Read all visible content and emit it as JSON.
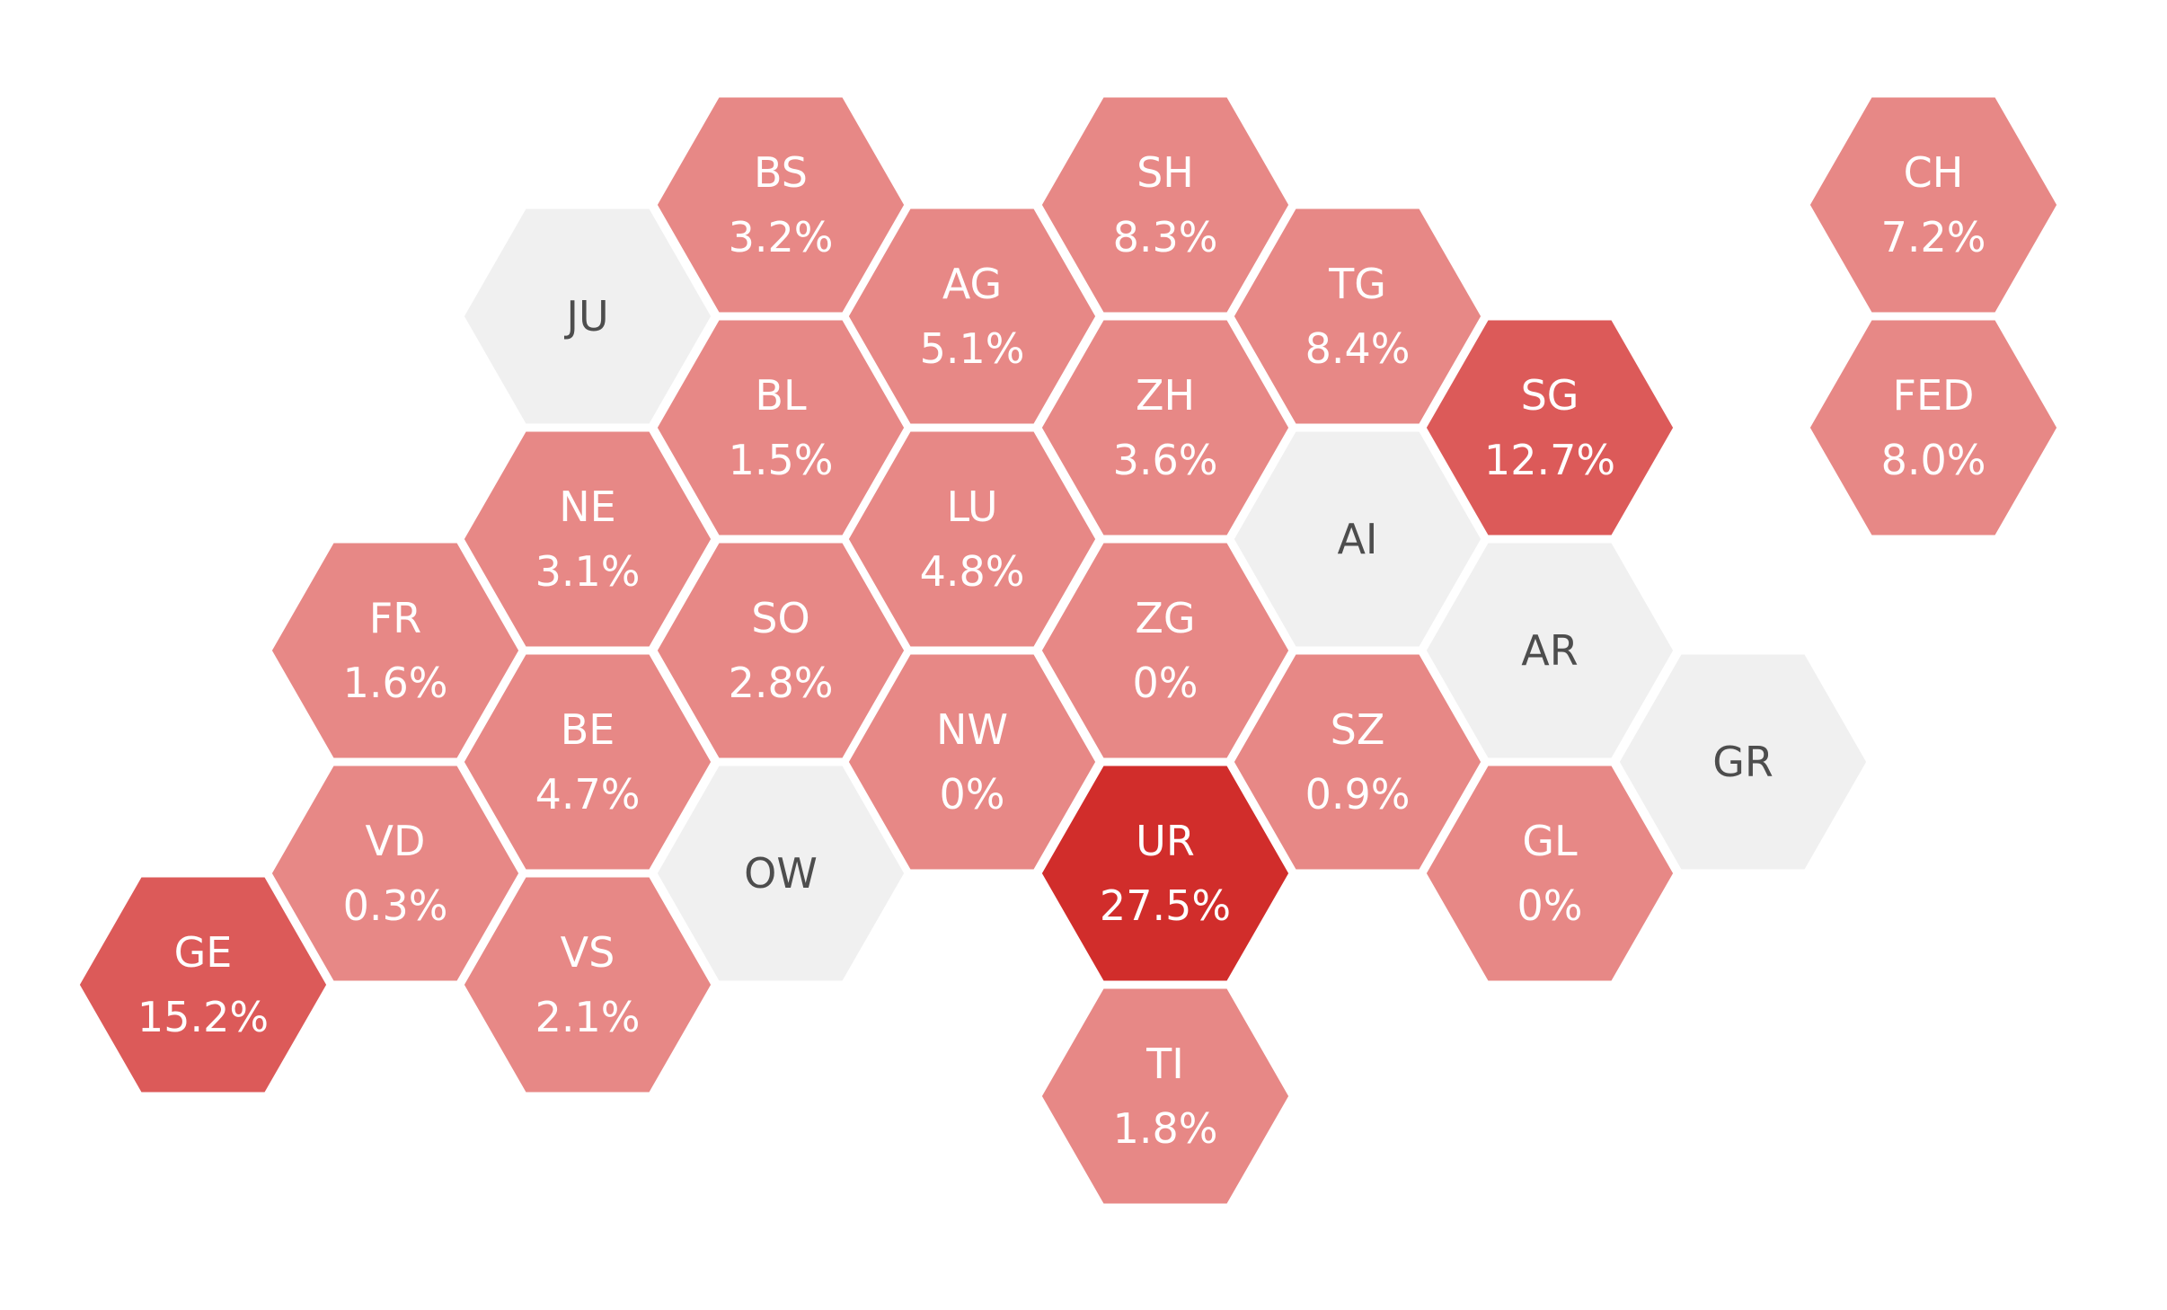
{
  "chart_data": {
    "type": "hexbin-map",
    "no_data_fill": "#f0f0f0",
    "colors": {
      "low": "#e78886",
      "mid": "#dc5a59",
      "high": "#d12d2b",
      "label_on_data": "#ffffff",
      "label_no_data": "#4d4d4d"
    },
    "regions": [
      {
        "code": "BS",
        "label": "3.2%",
        "value": 3.2,
        "level": "low"
      },
      {
        "code": "SH",
        "label": "8.3%",
        "value": 8.3,
        "level": "low"
      },
      {
        "code": "CH",
        "label": "7.2%",
        "value": 7.2,
        "level": "low"
      },
      {
        "code": "JU",
        "label": "",
        "value": null,
        "level": "none"
      },
      {
        "code": "AG",
        "label": "5.1%",
        "value": 5.1,
        "level": "low"
      },
      {
        "code": "TG",
        "label": "8.4%",
        "value": 8.4,
        "level": "low"
      },
      {
        "code": "BL",
        "label": "1.5%",
        "value": 1.5,
        "level": "low"
      },
      {
        "code": "ZH",
        "label": "3.6%",
        "value": 3.6,
        "level": "low"
      },
      {
        "code": "SG",
        "label": "12.7%",
        "value": 12.7,
        "level": "mid"
      },
      {
        "code": "FED",
        "label": "8.0%",
        "value": 8.0,
        "level": "low"
      },
      {
        "code": "NE",
        "label": "3.1%",
        "value": 3.1,
        "level": "low"
      },
      {
        "code": "LU",
        "label": "4.8%",
        "value": 4.8,
        "level": "low"
      },
      {
        "code": "AI",
        "label": "",
        "value": null,
        "level": "none"
      },
      {
        "code": "FR",
        "label": "1.6%",
        "value": 1.6,
        "level": "low"
      },
      {
        "code": "SO",
        "label": "2.8%",
        "value": 2.8,
        "level": "low"
      },
      {
        "code": "ZG",
        "label": "0%",
        "value": 0,
        "level": "low"
      },
      {
        "code": "AR",
        "label": "",
        "value": null,
        "level": "none"
      },
      {
        "code": "BE",
        "label": "4.7%",
        "value": 4.7,
        "level": "low"
      },
      {
        "code": "NW",
        "label": "0%",
        "value": 0,
        "level": "low"
      },
      {
        "code": "SZ",
        "label": "0.9%",
        "value": 0.9,
        "level": "low"
      },
      {
        "code": "GR",
        "label": "",
        "value": null,
        "level": "none"
      },
      {
        "code": "VD",
        "label": "0.3%",
        "value": 0.3,
        "level": "low"
      },
      {
        "code": "OW",
        "label": "",
        "value": null,
        "level": "none"
      },
      {
        "code": "UR",
        "label": "27.5%",
        "value": 27.5,
        "level": "high"
      },
      {
        "code": "GL",
        "label": "0%",
        "value": 0,
        "level": "low"
      },
      {
        "code": "GE",
        "label": "15.2%",
        "value": 15.2,
        "level": "mid"
      },
      {
        "code": "VS",
        "label": "2.1%",
        "value": 2.1,
        "level": "low"
      },
      {
        "code": "TI",
        "label": "1.8%",
        "value": 1.8,
        "level": "low"
      }
    ]
  }
}
